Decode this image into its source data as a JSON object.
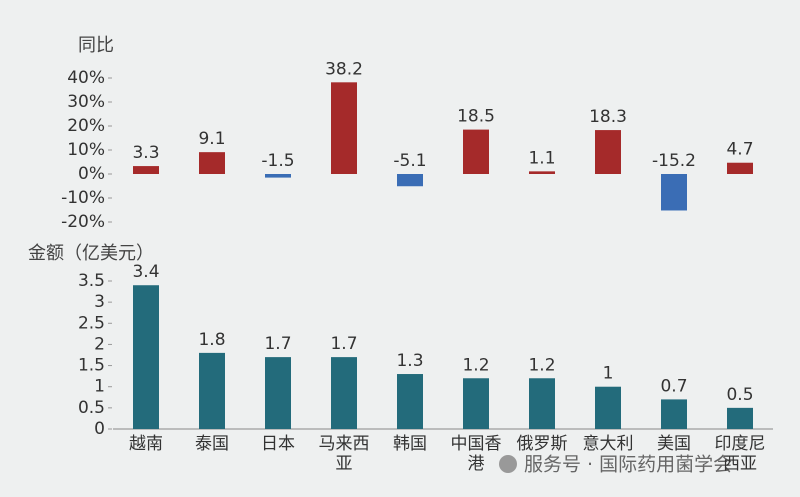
{
  "chart_data": [
    {
      "type": "bar",
      "y_label": "金额（亿美元）",
      "categories": [
        "越南",
        "泰国",
        "日本",
        "马来西亚",
        "韩国",
        "中国香港",
        "俄罗斯",
        "意大利",
        "美国",
        "印度尼西亚"
      ],
      "values": [
        3.4,
        1.8,
        1.7,
        1.7,
        1.3,
        1.2,
        1.2,
        1,
        0.7,
        0.5
      ],
      "color": "#236b7b",
      "ylim": [
        0,
        3.5
      ],
      "yticks": [
        0,
        0.5,
        1,
        1.5,
        2,
        2.5,
        3,
        3.5
      ]
    },
    {
      "type": "signed-bar",
      "y_label": "同比",
      "values": [
        3.3,
        9.1,
        -1.5,
        38.2,
        -5.1,
        18.5,
        1.1,
        18.3,
        -15.2,
        4.7
      ],
      "positive_color": "#a52a2a",
      "negative_color": "#3a6db5",
      "ylim": [
        -25,
        45
      ],
      "yticks": [
        {
          "value": -20,
          "label": "-20%"
        },
        {
          "value": -10,
          "label": "-10%"
        },
        {
          "value": 0,
          "label": "0%"
        },
        {
          "value": 10,
          "label": "10%"
        },
        {
          "value": 20,
          "label": "20%"
        },
        {
          "value": 30,
          "label": "30%"
        },
        {
          "value": 40,
          "label": "40%"
        }
      ]
    }
  ],
  "watermark": "服务号 · 国际药用菌学会"
}
